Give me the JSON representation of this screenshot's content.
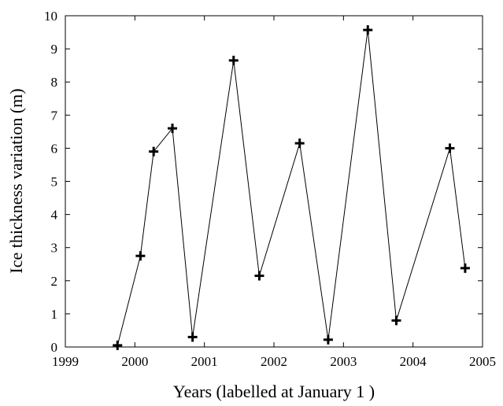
{
  "chart_data": {
    "type": "line",
    "title": "",
    "xlabel": "Years (labelled at January 1 )",
    "ylabel": "Ice thickness variation (m)",
    "xlim": [
      1999,
      2005
    ],
    "ylim": [
      0,
      10
    ],
    "x_ticks": [
      "1999",
      "2000",
      "2001",
      "2002",
      "2003",
      "2004",
      "2005"
    ],
    "y_ticks": [
      "0",
      "1",
      "2",
      "3",
      "4",
      "5",
      "6",
      "7",
      "8",
      "9",
      "10"
    ],
    "grid": false,
    "marker": "plus",
    "line_color": "#000000",
    "series": [
      {
        "x": [
          1999.75,
          2000.08,
          2000.27,
          2000.54,
          2000.83,
          2001.42,
          2001.79,
          2002.37,
          2002.78,
          2003.35,
          2003.76,
          2004.53,
          2004.75
        ],
        "y": [
          0.05,
          2.75,
          5.9,
          6.6,
          0.3,
          8.65,
          2.15,
          6.15,
          0.22,
          9.57,
          0.8,
          6.0,
          2.38
        ]
      }
    ]
  }
}
